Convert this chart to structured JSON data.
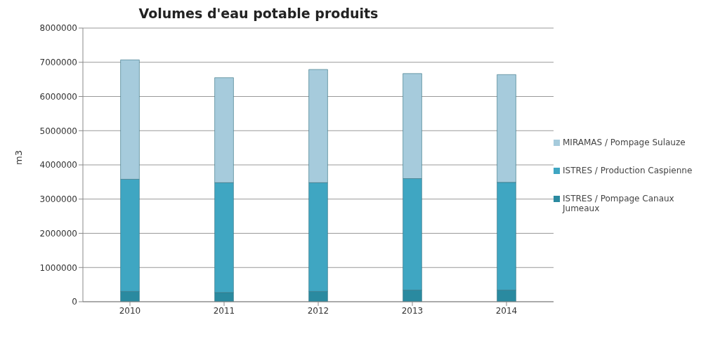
{
  "chart_data": {
    "type": "bar",
    "title": "Volumes d'eau potable produits",
    "ylabel": "m3",
    "categories": [
      "2010",
      "2011",
      "2012",
      "2013",
      "2014"
    ],
    "stacked": true,
    "series": [
      {
        "name": "ISTRES / Pompage Canaux Jumeaux",
        "color": "#2a8aa0",
        "values": [
          300000,
          270000,
          300000,
          340000,
          340000
        ]
      },
      {
        "name": "ISTRES / Production Caspienne",
        "color": "#3fa6c2",
        "values": [
          3280000,
          3210000,
          3180000,
          3260000,
          3150000
        ]
      },
      {
        "name": "MIRAMAS / Pompage Sulauze",
        "color": "#a6cbdc",
        "values": [
          3490000,
          3070000,
          3310000,
          3070000,
          3150000
        ]
      }
    ],
    "ylim": [
      0,
      8000000
    ],
    "yticks": [
      0,
      1000000,
      2000000,
      3000000,
      4000000,
      5000000,
      6000000,
      7000000,
      8000000
    ],
    "grid": "y",
    "legend": "right"
  }
}
